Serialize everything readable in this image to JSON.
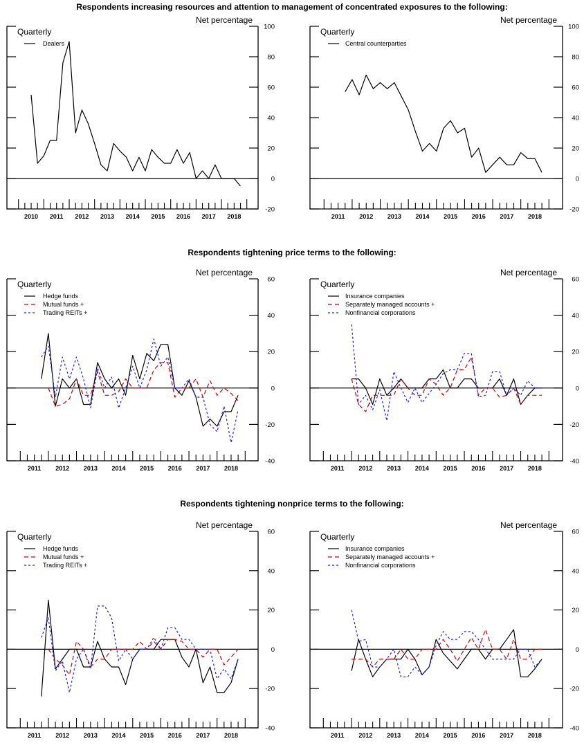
{
  "sections": [
    {
      "title": "Respondents increasing resources and attention to management of concentrated exposures to the following:"
    },
    {
      "title": "Respondents tightening price terms to the following:"
    },
    {
      "title": "Respondents tightening nonprice terms to the following:"
    }
  ],
  "colors": {
    "black": "#000000",
    "red": "#cc0000",
    "blue": "#1a1aff"
  },
  "chart_data": [
    {
      "type": "line",
      "section": 0,
      "frequency": "Quarterly",
      "ylabel": "Net percentage",
      "ylim": [
        -20,
        100
      ],
      "yticks": [
        100,
        80,
        60,
        40,
        20,
        0,
        -20
      ],
      "xticks": [
        "2010",
        "2011",
        "2012",
        "2013",
        "2014",
        "2015",
        "2016",
        "2017",
        "2018"
      ],
      "grid": false,
      "legend": "top-left",
      "series": [
        {
          "name": "Dealers",
          "color": "#000000",
          "style": "solid",
          "start": "2010:Q3",
          "values": [
            55,
            10,
            15,
            25,
            25,
            76,
            90,
            30,
            45,
            36,
            23,
            9,
            5,
            23,
            18,
            14,
            5,
            14,
            5,
            19,
            14,
            10,
            10,
            19,
            10,
            17,
            0,
            5,
            0,
            9,
            0,
            0,
            0,
            -5
          ]
        }
      ]
    },
    {
      "type": "line",
      "section": 0,
      "frequency": "Quarterly",
      "ylabel": "Net percentage",
      "ylim": [
        -20,
        100
      ],
      "yticks": [
        100,
        80,
        60,
        40,
        20,
        0,
        -20
      ],
      "xticks": [
        "2011",
        "2012",
        "2013",
        "2014",
        "2015",
        "2016",
        "2017",
        "2018"
      ],
      "grid": false,
      "legend": "top-left",
      "series": [
        {
          "name": "Central counterparties",
          "color": "#000000",
          "style": "solid",
          "start": "2011:Q4",
          "values": [
            57,
            65,
            55,
            68,
            59,
            63,
            59,
            63,
            54,
            45,
            31,
            18,
            23,
            18,
            33,
            38,
            30,
            33,
            14,
            20,
            4,
            9,
            14,
            9,
            9,
            17,
            13,
            13,
            4
          ]
        }
      ]
    },
    {
      "type": "line",
      "section": 1,
      "frequency": "Quarterly",
      "ylabel": "Net percentage",
      "ylim": [
        -40,
        60
      ],
      "yticks": [
        60,
        40,
        20,
        0,
        -20,
        -40
      ],
      "xticks": [
        "2011",
        "2012",
        "2013",
        "2014",
        "2015",
        "2016",
        "2017",
        "2018"
      ],
      "grid": false,
      "legend": "top-left",
      "series": [
        {
          "name": "Hedge funds",
          "color": "#000000",
          "style": "solid",
          "start": "2011:Q4",
          "values": [
            5,
            30,
            -10,
            5,
            0,
            5,
            -9,
            -9,
            14,
            5,
            0,
            5,
            -4,
            18,
            5,
            19,
            15,
            24,
            24,
            0,
            -4,
            4,
            -5,
            -21,
            -17,
            -21,
            -13,
            -13,
            -4
          ]
        },
        {
          "name": "Mutual funds +",
          "color": "#cc0000",
          "style": "dashed",
          "start": "2012:Q1",
          "values": [
            0,
            -10,
            -9,
            -6,
            5,
            -4,
            -4,
            9,
            -4,
            -4,
            -2,
            5,
            0,
            0,
            0,
            10,
            14,
            14,
            -5,
            0,
            0,
            5,
            -5,
            4,
            -4,
            0,
            -3,
            -7
          ]
        },
        {
          "name": "Trading REITs +",
          "color": "#1a1aff",
          "style": "dotted",
          "start": "2011:Q4",
          "values": [
            17,
            23,
            -5,
            17,
            5,
            17,
            5,
            -11,
            11,
            0,
            6,
            -11,
            0,
            12,
            0,
            10,
            27,
            12,
            17,
            0,
            0,
            5,
            -5,
            -5,
            -20,
            -24,
            -10,
            -30,
            -12
          ]
        }
      ]
    },
    {
      "type": "line",
      "section": 1,
      "frequency": "Quarterly",
      "ylabel": "Net percentage",
      "ylim": [
        -40,
        60
      ],
      "yticks": [
        60,
        40,
        20,
        0,
        -20,
        -40
      ],
      "xticks": [
        "2011",
        "2012",
        "2013",
        "2014",
        "2015",
        "2016",
        "2017",
        "2018"
      ],
      "grid": false,
      "legend": "top-left",
      "series": [
        {
          "name": "Insurance companies",
          "color": "#000000",
          "style": "solid",
          "start": "2012:Q1",
          "values": [
            5,
            5,
            0,
            -9,
            5,
            -4,
            0,
            5,
            0,
            0,
            0,
            5,
            5,
            10,
            0,
            0,
            5,
            5,
            0,
            0,
            0,
            5,
            -4,
            5,
            -9,
            -4,
            0,
            0
          ]
        },
        {
          "name": "Separately managed accounts +",
          "color": "#cc0000",
          "style": "dashed",
          "start": "2012:Q1",
          "values": [
            5,
            -9,
            -13,
            -4,
            -4,
            -4,
            -4,
            5,
            0,
            -4,
            -4,
            5,
            2,
            -4,
            0,
            10,
            10,
            17,
            -4,
            0,
            0,
            -5,
            -4,
            0,
            -9,
            -4,
            -4,
            -4
          ]
        },
        {
          "name": "Nonfinancial corporations",
          "color": "#1a1aff",
          "style": "dotted",
          "start": "2012:Q1",
          "values": [
            35,
            -9,
            -4,
            -12,
            -1,
            -18,
            9,
            0,
            -8,
            0,
            -8,
            -3,
            2,
            8,
            10,
            10,
            19,
            19,
            -5,
            -4,
            9,
            9,
            -4,
            0,
            -4,
            4,
            0,
            0
          ]
        }
      ]
    },
    {
      "type": "line",
      "section": 2,
      "frequency": "Quarterly",
      "ylabel": "Net percentage",
      "ylim": [
        -40,
        60
      ],
      "yticks": [
        60,
        40,
        20,
        0,
        -20,
        -40
      ],
      "xticks": [
        "2011",
        "2012",
        "2013",
        "2014",
        "2015",
        "2016",
        "2017",
        "2018"
      ],
      "grid": false,
      "legend": "top-left",
      "series": [
        {
          "name": "Hedge funds",
          "color": "#000000",
          "style": "solid",
          "start": "2011:Q4",
          "values": [
            -24,
            25,
            -10,
            -5,
            0,
            0,
            -9,
            -9,
            4,
            -5,
            -9,
            -9,
            -18,
            -5,
            0,
            0,
            0,
            5,
            5,
            5,
            -4,
            -9,
            0,
            -17,
            -9,
            -22,
            -22,
            -17,
            -5
          ]
        },
        {
          "name": "Mutual funds +",
          "color": "#cc0000",
          "style": "dashed",
          "start": "2012:Q1",
          "values": [
            0,
            -5,
            -8,
            -13,
            4,
            0,
            -9,
            -5,
            -5,
            0,
            0,
            0,
            0,
            4,
            0,
            4,
            0,
            5,
            5,
            4,
            0,
            0,
            -4,
            0,
            0,
            -8,
            -4,
            0
          ]
        },
        {
          "name": "Trading REITs +",
          "color": "#1a1aff",
          "style": "dotted",
          "start": "2011:Q4",
          "values": [
            6,
            16,
            -11,
            -6,
            -22,
            -5,
            0,
            -10,
            22,
            22,
            16,
            -6,
            0,
            -5,
            0,
            0,
            6,
            0,
            11,
            11,
            5,
            5,
            0,
            0,
            0,
            -15,
            -10,
            -15,
            -5
          ]
        }
      ]
    },
    {
      "type": "line",
      "section": 2,
      "frequency": "Quarterly",
      "ylabel": "Net percentage",
      "ylim": [
        -40,
        60
      ],
      "yticks": [
        60,
        40,
        20,
        0,
        -20,
        -40
      ],
      "xticks": [
        "2011",
        "2012",
        "2013",
        "2014",
        "2015",
        "2016",
        "2017",
        "2018"
      ],
      "grid": false,
      "legend": "top-left",
      "series": [
        {
          "name": "Insurance companies",
          "color": "#000000",
          "style": "solid",
          "start": "2012:Q1",
          "values": [
            -11,
            5,
            -5,
            -14,
            -9,
            -5,
            -5,
            -5,
            0,
            -5,
            -13,
            -9,
            5,
            -2,
            -6,
            -10,
            -5,
            0,
            0,
            -5,
            0,
            0,
            5,
            10,
            -14,
            -14,
            -10,
            -5
          ]
        },
        {
          "name": "Separately managed accounts +",
          "color": "#cc0000",
          "style": "dashed",
          "start": "2012:Q1",
          "values": [
            -5,
            -5,
            -5,
            -9,
            -5,
            -5,
            -5,
            0,
            -5,
            -5,
            0,
            0,
            0,
            5,
            0,
            -6,
            0,
            6,
            0,
            10,
            0,
            0,
            -5,
            5,
            -5,
            -5,
            0,
            0
          ]
        },
        {
          "name": "Nonfinancial corporations",
          "color": "#1a1aff",
          "style": "dotted",
          "start": "2012:Q1",
          "values": [
            20,
            4,
            5,
            -9,
            -9,
            -5,
            0,
            -14,
            -14,
            -9,
            -13,
            -9,
            2,
            9,
            5,
            5,
            9,
            9,
            5,
            0,
            -5,
            -5,
            -5,
            -5,
            0,
            0,
            -9,
            -5
          ]
        }
      ]
    }
  ]
}
